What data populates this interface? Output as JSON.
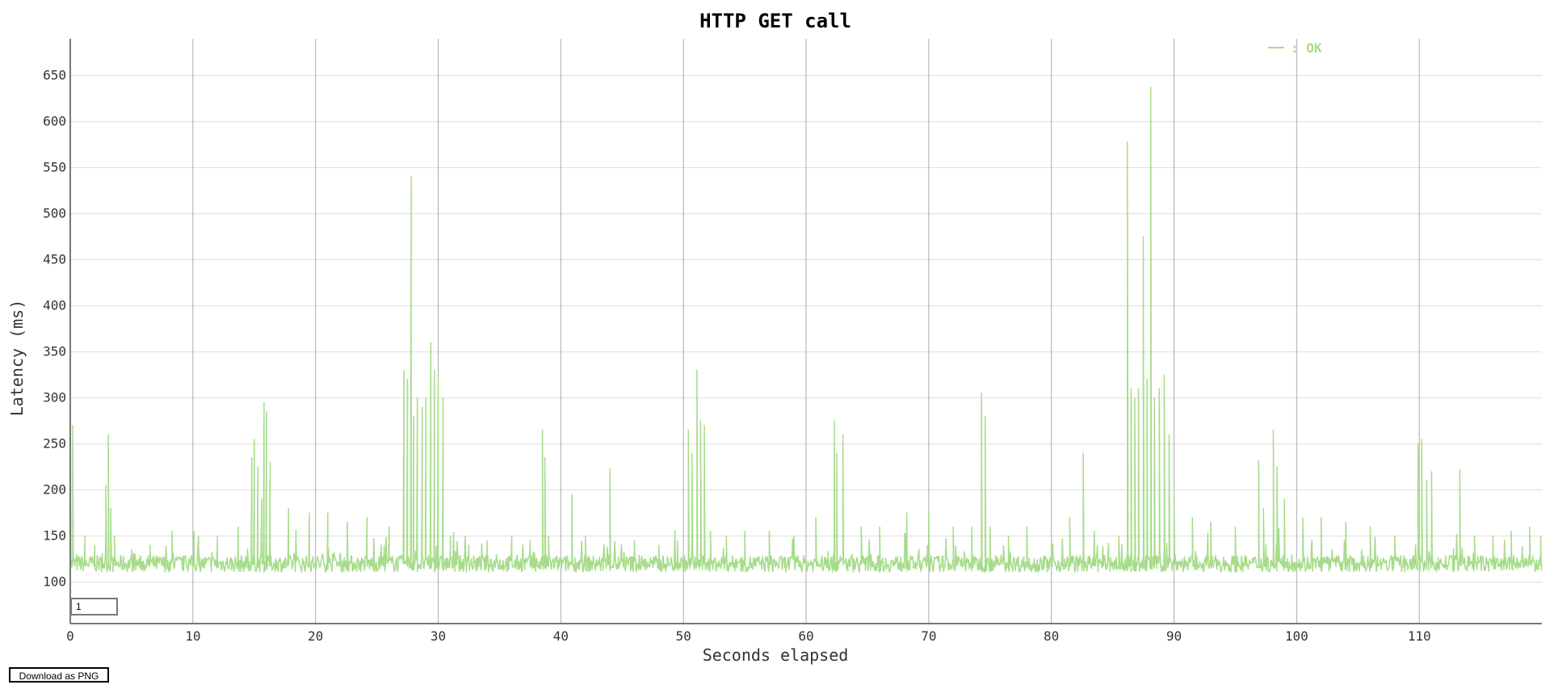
{
  "controls": {
    "resolution_value": "1",
    "download_label": "Download as PNG"
  },
  "colors": {
    "series": "#a6dc8a",
    "major_grid": "#aaaaaa",
    "minor_grid": "#dddddd",
    "axis": "#777777"
  },
  "chart_data": {
    "type": "line",
    "title": "HTTP GET call",
    "xlabel": "Seconds elapsed",
    "ylabel": "Latency (ms)",
    "xlim": [
      0,
      120
    ],
    "ylim": [
      55,
      690
    ],
    "x_ticks": [
      0,
      10,
      20,
      30,
      40,
      50,
      60,
      70,
      80,
      90,
      100,
      110
    ],
    "y_ticks": [
      100,
      150,
      200,
      250,
      300,
      350,
      400,
      450,
      500,
      550,
      600,
      650
    ],
    "grid": true,
    "legend_position": "top-right",
    "series": [
      {
        "name": ": OK",
        "baseline": {
          "min": 105,
          "max": 135,
          "from": 0,
          "to": 120
        },
        "x": [
          0.0,
          0.2,
          0.5,
          1.2,
          2.0,
          2.9,
          3.1,
          3.3,
          3.6,
          5.0,
          6.5,
          8.3,
          10.1,
          12.0,
          13.7,
          14.8,
          15.0,
          15.3,
          15.6,
          15.8,
          16.0,
          16.3,
          17.8,
          19.5,
          21.0,
          22.6,
          24.2,
          26.0,
          27.2,
          27.5,
          27.8,
          28.0,
          28.3,
          28.7,
          29.0,
          29.4,
          29.7,
          30.0,
          30.4,
          31.0,
          32.5,
          34.0,
          36.0,
          37.5,
          38.5,
          38.7,
          39.0,
          40.9,
          42.0,
          44.0,
          46.0,
          48.0,
          49.5,
          50.4,
          50.7,
          51.1,
          51.4,
          51.7,
          52.2,
          53.5,
          55.0,
          57.0,
          59.0,
          60.8,
          62.3,
          62.5,
          63.0,
          64.5,
          66.0,
          68.2,
          70.0,
          72.0,
          73.5,
          74.3,
          74.6,
          75.0,
          76.5,
          78.0,
          80.0,
          81.5,
          82.6,
          83.5,
          85.5,
          86.2,
          86.5,
          86.8,
          87.1,
          87.5,
          87.8,
          88.1,
          88.4,
          88.8,
          89.2,
          89.6,
          90.0,
          91.5,
          93.0,
          95.0,
          96.9,
          97.3,
          98.1,
          98.4,
          99.0,
          100.5,
          102.0,
          104.0,
          106.0,
          108.0,
          109.9,
          110.2,
          110.6,
          111.0,
          113.3,
          114.5,
          116.0,
          117.5,
          119.0,
          119.9
        ],
        "y": [
          315,
          270,
          130,
          150,
          140,
          205,
          260,
          180,
          150,
          135,
          140,
          155,
          155,
          150,
          160,
          235,
          255,
          225,
          190,
          295,
          285,
          230,
          180,
          175,
          175,
          165,
          170,
          160,
          330,
          320,
          540,
          280,
          300,
          290,
          300,
          360,
          330,
          320,
          300,
          150,
          140,
          145,
          150,
          145,
          265,
          235,
          150,
          195,
          150,
          223,
          145,
          140,
          145,
          265,
          240,
          330,
          275,
          270,
          155,
          150,
          155,
          155,
          150,
          170,
          275,
          240,
          260,
          160,
          160,
          175,
          175,
          160,
          160,
          305,
          280,
          160,
          150,
          160,
          150,
          170,
          240,
          155,
          150,
          578,
          310,
          300,
          310,
          475,
          320,
          637,
          300,
          310,
          325,
          260,
          200,
          170,
          165,
          160,
          232,
          180,
          265,
          225,
          190,
          170,
          170,
          165,
          160,
          150,
          250,
          255,
          210,
          220,
          222,
          150,
          150,
          155,
          160,
          150
        ]
      }
    ]
  }
}
